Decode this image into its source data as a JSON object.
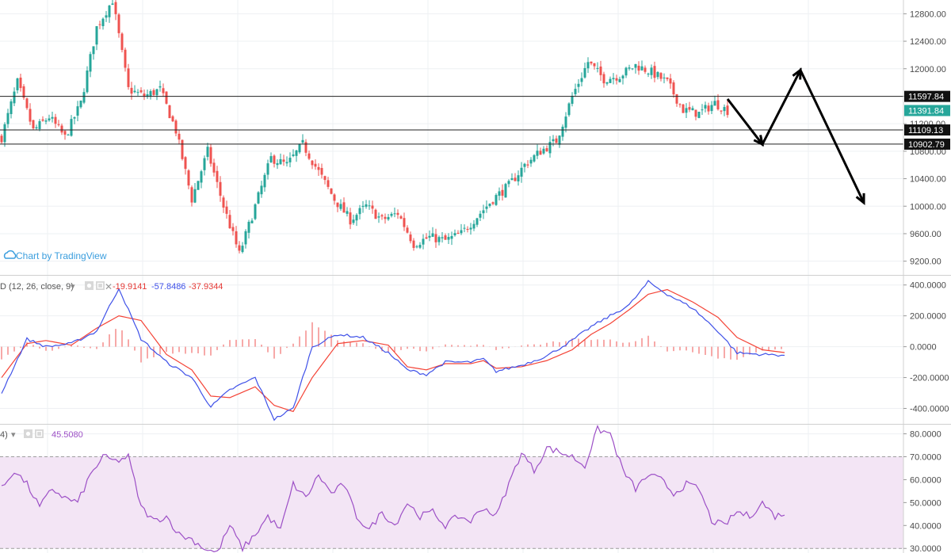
{
  "watermark": {
    "label": "Chart by TradingView"
  },
  "colors": {
    "up": "#26a69a",
    "down": "#ef5350",
    "grid": "#eef0f3",
    "macd_line": "#3f51e8",
    "signal_line": "#f44336",
    "histogram": "#ef5350",
    "rsi_line": "#9c4fc6",
    "rsi_band": "#f3e5f5",
    "current_tag": "#26a69a",
    "level_tag": "#111111"
  },
  "chart_data": [
    {
      "type": "candlestick",
      "name": "price",
      "ylim": [
        9000,
        13000
      ],
      "yticks": [
        {
          "value": 9200,
          "label": "9200.00"
        },
        {
          "value": 9600,
          "label": "9600.00"
        },
        {
          "value": 10000,
          "label": "10000.00"
        },
        {
          "value": 10400,
          "label": "10400.00"
        },
        {
          "value": 10800,
          "label": "10800.00"
        },
        {
          "value": 11200,
          "label": "11200.00"
        },
        {
          "value": 11600,
          "label": "11600.00"
        },
        {
          "value": 12000,
          "label": "12000.00"
        },
        {
          "value": 12400,
          "label": "12400.00"
        },
        {
          "value": 12800,
          "label": "12800.00"
        }
      ],
      "close_anchors": [
        [
          0,
          11000
        ],
        [
          5,
          11800
        ],
        [
          10,
          11100
        ],
        [
          15,
          11300
        ],
        [
          20,
          11000
        ],
        [
          25,
          11500
        ],
        [
          30,
          12600
        ],
        [
          35,
          13000
        ],
        [
          40,
          11700
        ],
        [
          45,
          11600
        ],
        [
          50,
          11700
        ],
        [
          55,
          11100
        ],
        [
          60,
          10100
        ],
        [
          65,
          10800
        ],
        [
          70,
          10000
        ],
        [
          75,
          9300
        ],
        [
          80,
          10000
        ],
        [
          85,
          10700
        ],
        [
          90,
          10600
        ],
        [
          95,
          10900
        ],
        [
          100,
          10500
        ],
        [
          105,
          10100
        ],
        [
          110,
          9800
        ],
        [
          115,
          10000
        ],
        [
          120,
          9800
        ],
        [
          125,
          9900
        ],
        [
          130,
          9450
        ],
        [
          135,
          9550
        ],
        [
          140,
          9500
        ],
        [
          145,
          9600
        ],
        [
          150,
          9850
        ],
        [
          155,
          10100
        ],
        [
          160,
          10300
        ],
        [
          165,
          10600
        ],
        [
          170,
          10800
        ],
        [
          175,
          10950
        ],
        [
          180,
          11600
        ],
        [
          185,
          12100
        ],
        [
          190,
          11850
        ],
        [
          195,
          11900
        ],
        [
          200,
          12050
        ],
        [
          205,
          11950
        ],
        [
          210,
          11800
        ],
        [
          215,
          11400
        ],
        [
          220,
          11350
        ],
        [
          225,
          11500
        ],
        [
          229,
          11392
        ]
      ],
      "levels": [
        {
          "value": 11597.84,
          "label": "11597.84",
          "style": "level"
        },
        {
          "value": 11391.84,
          "label": "11391.84",
          "style": "current"
        },
        {
          "value": 11109.13,
          "label": "11109.13",
          "style": "level"
        },
        {
          "value": 10902.79,
          "label": "10902.79",
          "style": "level"
        }
      ],
      "projection_path": [
        [
          229,
          11560
        ],
        [
          240,
          10900
        ],
        [
          252,
          11980
        ],
        [
          272,
          10050
        ]
      ]
    },
    {
      "type": "line",
      "name": "MACD",
      "legend": {
        "label": "D (12, 26, close, 9)",
        "histogram_value": "-19.9141",
        "macd_value": "-57.8486",
        "signal_value": "-37.9344"
      },
      "ylim": [
        -500,
        460
      ],
      "yticks": [
        {
          "value": 400,
          "label": "400.0000"
        },
        {
          "value": 200,
          "label": "200.0000"
        },
        {
          "value": 0,
          "label": "0.0000"
        },
        {
          "value": -200,
          "label": "-200.0000"
        },
        {
          "value": -400,
          "label": "-400.0000"
        }
      ],
      "macd_anchors": [
        [
          0,
          -300
        ],
        [
          8,
          50
        ],
        [
          14,
          0
        ],
        [
          22,
          20
        ],
        [
          30,
          100
        ],
        [
          37,
          380
        ],
        [
          44,
          50
        ],
        [
          52,
          -100
        ],
        [
          60,
          -200
        ],
        [
          66,
          -390
        ],
        [
          72,
          -280
        ],
        [
          80,
          -200
        ],
        [
          86,
          -470
        ],
        [
          92,
          -400
        ],
        [
          98,
          0
        ],
        [
          106,
          80
        ],
        [
          114,
          60
        ],
        [
          122,
          -40
        ],
        [
          128,
          -150
        ],
        [
          134,
          -180
        ],
        [
          140,
          -100
        ],
        [
          148,
          -100
        ],
        [
          152,
          -80
        ],
        [
          156,
          -160
        ],
        [
          164,
          -120
        ],
        [
          172,
          -60
        ],
        [
          180,
          40
        ],
        [
          186,
          130
        ],
        [
          192,
          200
        ],
        [
          198,
          270
        ],
        [
          204,
          420
        ],
        [
          210,
          340
        ],
        [
          218,
          250
        ],
        [
          226,
          100
        ],
        [
          232,
          -40
        ],
        [
          240,
          -50
        ],
        [
          247,
          -55
        ]
      ],
      "signal_anchors": [
        [
          0,
          -200
        ],
        [
          8,
          20
        ],
        [
          14,
          40
        ],
        [
          22,
          10
        ],
        [
          30,
          120
        ],
        [
          37,
          200
        ],
        [
          44,
          170
        ],
        [
          52,
          -50
        ],
        [
          60,
          -150
        ],
        [
          66,
          -320
        ],
        [
          72,
          -330
        ],
        [
          80,
          -260
        ],
        [
          86,
          -380
        ],
        [
          92,
          -420
        ],
        [
          98,
          -200
        ],
        [
          106,
          20
        ],
        [
          114,
          40
        ],
        [
          122,
          10
        ],
        [
          128,
          -130
        ],
        [
          134,
          -150
        ],
        [
          140,
          -110
        ],
        [
          148,
          -110
        ],
        [
          152,
          -90
        ],
        [
          156,
          -140
        ],
        [
          164,
          -130
        ],
        [
          172,
          -90
        ],
        [
          180,
          -20
        ],
        [
          186,
          80
        ],
        [
          192,
          150
        ],
        [
          198,
          240
        ],
        [
          204,
          340
        ],
        [
          210,
          370
        ],
        [
          218,
          290
        ],
        [
          226,
          190
        ],
        [
          232,
          60
        ],
        [
          240,
          -20
        ],
        [
          247,
          -38
        ]
      ]
    },
    {
      "type": "line",
      "name": "RSI",
      "legend": {
        "label": "4)",
        "value": "45.5080"
      },
      "ylim": [
        28,
        84
      ],
      "band": [
        30,
        70
      ],
      "yticks": [
        {
          "value": 30,
          "label": "30.0000"
        },
        {
          "value": 40,
          "label": "40.0000"
        },
        {
          "value": 50,
          "label": "50.0000"
        },
        {
          "value": 60,
          "label": "60.0000"
        },
        {
          "value": 70,
          "label": "70.0000"
        },
        {
          "value": 80,
          "label": "80.0000"
        }
      ],
      "rsi_anchors": [
        [
          0,
          56
        ],
        [
          4,
          64
        ],
        [
          8,
          58
        ],
        [
          12,
          48
        ],
        [
          16,
          56
        ],
        [
          20,
          52
        ],
        [
          24,
          50
        ],
        [
          28,
          62
        ],
        [
          32,
          70
        ],
        [
          36,
          68
        ],
        [
          40,
          70
        ],
        [
          44,
          48
        ],
        [
          48,
          42
        ],
        [
          52,
          44
        ],
        [
          56,
          36
        ],
        [
          60,
          34
        ],
        [
          64,
          30
        ],
        [
          68,
          28
        ],
        [
          72,
          40
        ],
        [
          76,
          30
        ],
        [
          80,
          36
        ],
        [
          84,
          44
        ],
        [
          88,
          38
        ],
        [
          92,
          58
        ],
        [
          96,
          52
        ],
        [
          100,
          62
        ],
        [
          104,
          54
        ],
        [
          108,
          58
        ],
        [
          112,
          44
        ],
        [
          116,
          38
        ],
        [
          120,
          46
        ],
        [
          124,
          40
        ],
        [
          128,
          50
        ],
        [
          132,
          44
        ],
        [
          136,
          46
        ],
        [
          140,
          40
        ],
        [
          144,
          44
        ],
        [
          148,
          42
        ],
        [
          152,
          48
        ],
        [
          156,
          44
        ],
        [
          160,
          58
        ],
        [
          164,
          72
        ],
        [
          168,
          64
        ],
        [
          172,
          74
        ],
        [
          176,
          72
        ],
        [
          180,
          70
        ],
        [
          184,
          66
        ],
        [
          188,
          82
        ],
        [
          192,
          80
        ],
        [
          196,
          64
        ],
        [
          200,
          56
        ],
        [
          204,
          62
        ],
        [
          208,
          60
        ],
        [
          212,
          54
        ],
        [
          216,
          58
        ],
        [
          220,
          56
        ],
        [
          224,
          42
        ],
        [
          228,
          40
        ],
        [
          232,
          46
        ],
        [
          236,
          44
        ],
        [
          240,
          50
        ],
        [
          244,
          44
        ],
        [
          247,
          45.5
        ]
      ]
    }
  ]
}
